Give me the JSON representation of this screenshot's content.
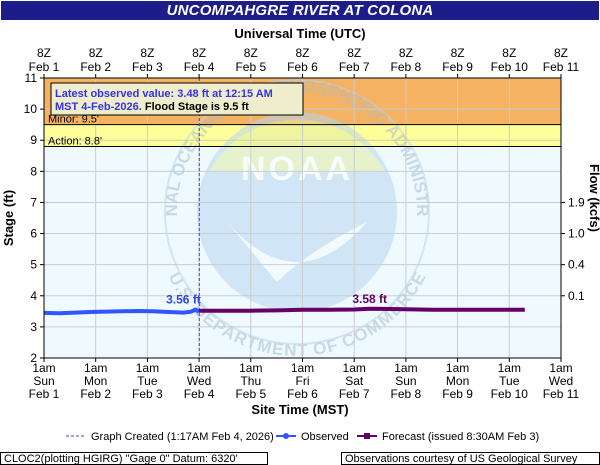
{
  "page": {
    "title": "UNCOMPAHGRE RIVER AT COLONA",
    "footer_left": "CLOC2(plotting HGIRG) \"Gage 0\" Datum: 6320'",
    "footer_right": "Observations courtesy of US Geological Survey"
  },
  "chart_data": {
    "type": "line",
    "title": "UNCOMPAHGRE RIVER AT COLONA",
    "top_axis_label": "Universal Time (UTC)",
    "xlabel": "Site Time (MST)",
    "ylabel": "Stage (ft)",
    "y2label": "Flow (kcfs)",
    "ylim": [
      2,
      11
    ],
    "y_ticks": [
      "2",
      "3",
      "4",
      "5",
      "6",
      "7",
      "8",
      "9",
      "10",
      "11"
    ],
    "y2_ticks": [
      {
        "label": "1.9",
        "stage": 7.0
      },
      {
        "label": "1.0",
        "stage": 6.0
      },
      {
        "label": "0.4",
        "stage": 5.0
      },
      {
        "label": "0.1",
        "stage": 4.0
      }
    ],
    "top_ticks": [
      [
        "8Z",
        "Feb 1"
      ],
      [
        "8Z",
        "Feb 2"
      ],
      [
        "8Z",
        "Feb 3"
      ],
      [
        "8Z",
        "Feb 4"
      ],
      [
        "8Z",
        "Feb 5"
      ],
      [
        "8Z",
        "Feb 6"
      ],
      [
        "8Z",
        "Feb 7"
      ],
      [
        "8Z",
        "Feb 8"
      ],
      [
        "8Z",
        "Feb 9"
      ],
      [
        "8Z",
        "Feb 10"
      ],
      [
        "8Z",
        "Feb 11"
      ]
    ],
    "bottom_ticks": [
      [
        "1am",
        "Sun",
        "Feb 1"
      ],
      [
        "1am",
        "Mon",
        "Feb 2"
      ],
      [
        "1am",
        "Tue",
        "Feb 3"
      ],
      [
        "1am",
        "Wed",
        "Feb 4"
      ],
      [
        "1am",
        "Thu",
        "Feb 5"
      ],
      [
        "1am",
        "Fri",
        "Feb 6"
      ],
      [
        "1am",
        "Sat",
        "Feb 7"
      ],
      [
        "1am",
        "Sun",
        "Feb 8"
      ],
      [
        "1am",
        "Mon",
        "Feb 9"
      ],
      [
        "1am",
        "Tue",
        "Feb 10"
      ],
      [
        "1am",
        "Wed",
        "Feb 11"
      ]
    ],
    "flood_stage": 9.5,
    "action_stage": 8.8,
    "minor_label": "Minor: 9.5'",
    "action_label": "Action: 8.8'",
    "graph_created_day": 3.0035,
    "info_box": {
      "line1": "Latest observed value: 3.48 ft at 12:15 AM",
      "line2a": "MST 4-Feb-2026.",
      "line2b": " Flood Stage is 9.5 ft"
    },
    "series": [
      {
        "name": "Observed",
        "color": "#3355ff",
        "points": [
          [
            0,
            3.45
          ],
          [
            0.3,
            3.44
          ],
          [
            0.6,
            3.46
          ],
          [
            0.9,
            3.48
          ],
          [
            1.2,
            3.49
          ],
          [
            1.5,
            3.5
          ],
          [
            1.8,
            3.51
          ],
          [
            2.1,
            3.5
          ],
          [
            2.4,
            3.48
          ],
          [
            2.7,
            3.46
          ],
          [
            2.85,
            3.49
          ],
          [
            2.93,
            3.56
          ],
          [
            3.0,
            3.48
          ]
        ]
      },
      {
        "name": "Forecast (issued 8:30AM Feb 3)",
        "color": "#660066",
        "points": [
          [
            3.0,
            3.52
          ],
          [
            3.5,
            3.52
          ],
          [
            4.0,
            3.52
          ],
          [
            4.5,
            3.53
          ],
          [
            5.0,
            3.55
          ],
          [
            5.5,
            3.55
          ],
          [
            6.0,
            3.56
          ],
          [
            6.3,
            3.58
          ],
          [
            7.0,
            3.57
          ],
          [
            7.5,
            3.55
          ],
          [
            8.0,
            3.55
          ],
          [
            9.0,
            3.55
          ],
          [
            9.3,
            3.55
          ]
        ]
      }
    ],
    "annotations": [
      {
        "text": "3.56 ft",
        "x": 2.93,
        "y": 3.56
      },
      {
        "text": "3.58 ft",
        "x": 6.3,
        "y": 3.58
      }
    ],
    "legend": {
      "created": "Graph Created (1:17AM Feb 4, 2026)",
      "observed": "Observed",
      "forecast": "Forecast (issued 8:30AM Feb 3)"
    },
    "watermark": {
      "top_text": "NATIONAL OCEANIC AND ATMOSPHERIC ADMINISTRATION",
      "bottom_text": "U.S. DEPARTMENT OF COMMERCE",
      "center": "NOAA"
    }
  }
}
